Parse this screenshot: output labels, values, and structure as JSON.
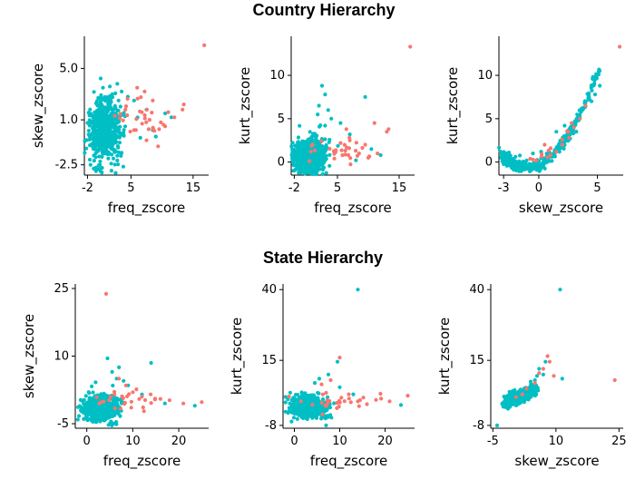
{
  "sections": [
    {
      "title": "Country Hierarchy"
    },
    {
      "title": "State Hierarchy"
    }
  ],
  "colors": {
    "group_a": "#F8766D",
    "group_b": "#00BFC4"
  },
  "chart_data": [
    {
      "type": "scatter",
      "section": "Country Hierarchy",
      "xlabel": "freq_zscore",
      "ylabel": "skew_zscore",
      "xlim": [
        -2.5,
        17.5
      ],
      "ylim": [
        -3.3,
        7.5
      ],
      "xticks": [
        {
          "v": -2,
          "label": "-2"
        },
        {
          "v": 5,
          "label": "5"
        },
        {
          "v": 15,
          "label": "15"
        }
      ],
      "yticks": [
        {
          "v": -2.5,
          "label": "-2.5"
        },
        {
          "v": 1.0,
          "label": "1.0"
        },
        {
          "v": 5.0,
          "label": "5.0"
        }
      ],
      "series": [
        {
          "color": "#F8766D",
          "cluster": {
            "n": 28,
            "cx": 6.5,
            "cy": 1.2,
            "sx": 2.5,
            "sy": 0.9
          },
          "points": [
            [
              16.8,
              6.8
            ],
            [
              13.5,
              2.2
            ],
            [
              13.3,
              1.8
            ],
            [
              11.0,
              1.6
            ],
            [
              9.8,
              0.8
            ],
            [
              8.5,
              2.5
            ],
            [
              7.2,
              3.2
            ],
            [
              6.0,
              3.5
            ],
            [
              10.5,
              0.5
            ],
            [
              12.0,
              1.2
            ],
            [
              5.5,
              0.2
            ],
            [
              6.8,
              0.7
            ],
            [
              8.0,
              1.0
            ]
          ]
        },
        {
          "color": "#00BFC4",
          "cluster": {
            "n": 600,
            "cx": 0.8,
            "cy": 0.2,
            "sx": 1.3,
            "sy": 1.2
          },
          "points": [
            [
              2.8,
              3.8
            ],
            [
              1.6,
              3.6
            ],
            [
              3.5,
              3.2
            ],
            [
              0.5,
              3.5
            ],
            [
              7.5,
              1.8
            ],
            [
              8.5,
              0.2
            ],
            [
              10.5,
              1.5
            ],
            [
              5.5,
              2.5
            ],
            [
              4.5,
              2.8
            ],
            [
              9.0,
              -0.3
            ],
            [
              6.5,
              -0.4
            ],
            [
              11.5,
              1.2
            ],
            [
              -1.0,
              -2.8
            ],
            [
              -1.5,
              -2.5
            ],
            [
              2.0,
              3.0
            ],
            [
              3.0,
              2.5
            ]
          ]
        }
      ]
    },
    {
      "type": "scatter",
      "section": "Country Hierarchy",
      "xlabel": "freq_zscore",
      "ylabel": "kurt_zscore",
      "xlim": [
        -2.5,
        17.5
      ],
      "ylim": [
        -1.5,
        14.5
      ],
      "xticks": [
        {
          "v": -2,
          "label": "-2"
        },
        {
          "v": 5,
          "label": "5"
        },
        {
          "v": 15,
          "label": "15"
        }
      ],
      "yticks": [
        {
          "v": 0,
          "label": "0"
        },
        {
          "v": 5,
          "label": "5"
        },
        {
          "v": 10,
          "label": "10"
        }
      ],
      "series": [
        {
          "color": "#F8766D",
          "cluster": {
            "n": 28,
            "cx": 6.0,
            "cy": 1.5,
            "sx": 2.5,
            "sy": 1.0
          },
          "points": [
            [
              16.8,
              13.3
            ],
            [
              13.3,
              3.8
            ],
            [
              13.0,
              3.5
            ],
            [
              11.0,
              4.5
            ],
            [
              9.5,
              2.0
            ],
            [
              8.5,
              1.0
            ],
            [
              7.0,
              2.5
            ],
            [
              5.5,
              2.2
            ],
            [
              10.0,
              0.5
            ],
            [
              11.5,
              1.0
            ],
            [
              4.5,
              0.4
            ]
          ]
        },
        {
          "color": "#00BFC4",
          "cluster": {
            "n": 600,
            "cx": 0.5,
            "cy": 0.5,
            "sx": 1.3,
            "sy": 1.1
          },
          "points": [
            [
              2.5,
              8.8
            ],
            [
              3.0,
              7.8
            ],
            [
              2.0,
              6.5
            ],
            [
              3.5,
              6.0
            ],
            [
              9.5,
              7.5
            ],
            [
              1.8,
              5.5
            ],
            [
              4.0,
              5.0
            ],
            [
              5.5,
              4.5
            ],
            [
              7.0,
              3.2
            ],
            [
              10.5,
              1.5
            ],
            [
              12.0,
              0.8
            ],
            [
              8.0,
              0.2
            ],
            [
              -1.5,
              -0.8
            ],
            [
              3.0,
              4.2
            ]
          ]
        }
      ]
    },
    {
      "type": "scatter",
      "section": "Country Hierarchy",
      "xlabel": "skew_zscore",
      "ylabel": "kurt_zscore",
      "xlim": [
        -3.4,
        7.2
      ],
      "ylim": [
        -1.5,
        14.5
      ],
      "xticks": [
        {
          "v": -3,
          "label": "-3"
        },
        {
          "v": 0,
          "label": "0"
        },
        {
          "v": 5,
          "label": "5"
        }
      ],
      "yticks": [
        {
          "v": 0,
          "label": "0"
        },
        {
          "v": 5,
          "label": "5"
        },
        {
          "v": 10,
          "label": "10"
        }
      ],
      "curve": {
        "x0": -3,
        "x1": 5.2
      },
      "series": [
        {
          "color": "#F8766D",
          "cluster": {
            "n": 0,
            "cx": 0,
            "cy": 0,
            "sx": 0,
            "sy": 0
          },
          "points": [
            [
              6.9,
              13.3
            ],
            [
              3.5,
              5.0
            ],
            [
              3.0,
              4.0
            ],
            [
              2.5,
              3.5
            ],
            [
              2.0,
              2.0
            ],
            [
              0.5,
              2.0
            ],
            [
              1.5,
              1.2
            ],
            [
              -0.5,
              0.3
            ],
            [
              1.0,
              0.8
            ],
            [
              2.8,
              4.5
            ],
            [
              4.0,
              6.5
            ]
          ]
        },
        {
          "color": "#00BFC4",
          "cluster": {
            "n": 0,
            "cx": 0,
            "cy": 0,
            "sx": 0,
            "sy": 0
          },
          "points": [
            [
              5.2,
              8.8
            ],
            [
              4.8,
              7.8
            ],
            [
              4.5,
              7.0
            ],
            [
              3.8,
              6.2
            ],
            [
              1.5,
              3.5
            ],
            [
              2.2,
              4.2
            ],
            [
              0.2,
              1.2
            ],
            [
              -0.5,
              1.0
            ]
          ]
        }
      ]
    },
    {
      "type": "scatter",
      "section": "State Hierarchy",
      "xlabel": "freq_zscore",
      "ylabel": "skew_zscore",
      "xlim": [
        -2.5,
        26.5
      ],
      "ylim": [
        -6,
        26
      ],
      "xticks": [
        {
          "v": 0,
          "label": "0"
        },
        {
          "v": 10,
          "label": "10"
        },
        {
          "v": 20,
          "label": "20"
        }
      ],
      "yticks": [
        {
          "v": -5,
          "label": "-5"
        },
        {
          "v": 10,
          "label": "10"
        },
        {
          "v": 25,
          "label": "25"
        }
      ],
      "series": [
        {
          "color": "#F8766D",
          "cluster": {
            "n": 25,
            "cx": 9.0,
            "cy": 0.5,
            "sx": 4.0,
            "sy": 1.2
          },
          "points": [
            [
              4.2,
              23.8
            ],
            [
              25.0,
              -0.2
            ],
            [
              21.0,
              -0.5
            ],
            [
              18.0,
              0.2
            ],
            [
              16.0,
              0.5
            ],
            [
              14.0,
              -0.4
            ],
            [
              12.0,
              1.0
            ],
            [
              10.0,
              2.0
            ],
            [
              8.5,
              3.5
            ],
            [
              7.0,
              5.0
            ],
            [
              6.0,
              1.5
            ]
          ]
        },
        {
          "color": "#00BFC4",
          "cluster": {
            "n": 520,
            "cx": 3.0,
            "cy": -1.5,
            "sx": 1.9,
            "sy": 1.5
          },
          "points": [
            [
              4.5,
              9.5
            ],
            [
              14.0,
              8.5
            ],
            [
              7.0,
              7.5
            ],
            [
              5.5,
              6.5
            ],
            [
              9.0,
              3.5
            ],
            [
              12.0,
              1.5
            ],
            [
              23.5,
              -1.0
            ],
            [
              17.0,
              -0.5
            ],
            [
              6.5,
              5.0
            ],
            [
              8.0,
              4.5
            ]
          ]
        }
      ]
    },
    {
      "type": "scatter",
      "section": "State Hierarchy",
      "xlabel": "freq_zscore",
      "ylabel": "kurt_zscore",
      "xlim": [
        -2.5,
        26.5
      ],
      "ylim": [
        -9,
        42
      ],
      "xticks": [
        {
          "v": 0,
          "label": "0"
        },
        {
          "v": 10,
          "label": "10"
        },
        {
          "v": 20,
          "label": "20"
        }
      ],
      "yticks": [
        {
          "v": -8,
          "label": "-8"
        },
        {
          "v": 15,
          "label": "15"
        },
        {
          "v": 40,
          "label": "40"
        }
      ],
      "series": [
        {
          "color": "#F8766D",
          "cluster": {
            "n": 25,
            "cx": 9.0,
            "cy": 0.0,
            "sx": 4.0,
            "sy": 1.5
          },
          "points": [
            [
              10.0,
              16.0
            ],
            [
              25.0,
              2.5
            ],
            [
              21.0,
              0.5
            ],
            [
              18.0,
              1.0
            ],
            [
              16.0,
              -0.5
            ],
            [
              14.0,
              0.5
            ],
            [
              12.0,
              3.0
            ],
            [
              8.0,
              8.0
            ],
            [
              6.0,
              6.5
            ],
            [
              7.0,
              3.5
            ]
          ]
        },
        {
          "color": "#00BFC4",
          "cluster": {
            "n": 520,
            "cx": 3.0,
            "cy": -1.5,
            "sx": 1.9,
            "sy": 1.8
          },
          "points": [
            [
              14.0,
              40.0
            ],
            [
              9.5,
              14.5
            ],
            [
              7.5,
              10.0
            ],
            [
              5.5,
              8.5
            ],
            [
              10.0,
              5.5
            ],
            [
              13.0,
              3.0
            ],
            [
              23.5,
              -0.8
            ],
            [
              7.0,
              -8.0
            ],
            [
              4.5,
              7.0
            ]
          ]
        }
      ]
    },
    {
      "type": "scatter",
      "section": "State Hierarchy",
      "xlabel": "skew_zscore",
      "ylabel": "kurt_zscore",
      "xlim": [
        -5.5,
        26
      ],
      "ylim": [
        -9,
        42
      ],
      "xticks": [
        {
          "v": -5,
          "label": "-5"
        },
        {
          "v": 10,
          "label": "10"
        },
        {
          "v": 25,
          "label": "25"
        }
      ],
      "yticks": [
        {
          "v": -8,
          "label": "-8"
        },
        {
          "v": 15,
          "label": "15"
        },
        {
          "v": 40,
          "label": "40"
        }
      ],
      "series": [
        {
          "color": "#F8766D",
          "cluster": {
            "n": 0,
            "cx": 0,
            "cy": 0,
            "sx": 0,
            "sy": 0
          },
          "points": [
            [
              24.0,
              8.0
            ],
            [
              8.0,
              16.5
            ],
            [
              8.5,
              14.5
            ],
            [
              9.5,
              9.5
            ],
            [
              7.0,
              12.0
            ],
            [
              6.0,
              10.5
            ],
            [
              5.0,
              7.0
            ],
            [
              3.0,
              5.0
            ],
            [
              2.0,
              3.0
            ],
            [
              0.5,
              2.0
            ]
          ]
        },
        {
          "color": "#00BFC4",
          "cluster": {
            "n": 0,
            "cx": 0,
            "cy": 0,
            "sx": 0,
            "sy": 0
          },
          "points": [
            [
              11.0,
              40.0
            ],
            [
              11.5,
              8.5
            ],
            [
              7.5,
              14.5
            ],
            [
              6.0,
              12.0
            ],
            [
              5.5,
              9.5
            ],
            [
              5.0,
              8.0
            ],
            [
              -4.0,
              -8.0
            ],
            [
              4.0,
              7.5
            ],
            [
              7.0,
              10.0
            ]
          ]
        }
      ]
    }
  ]
}
